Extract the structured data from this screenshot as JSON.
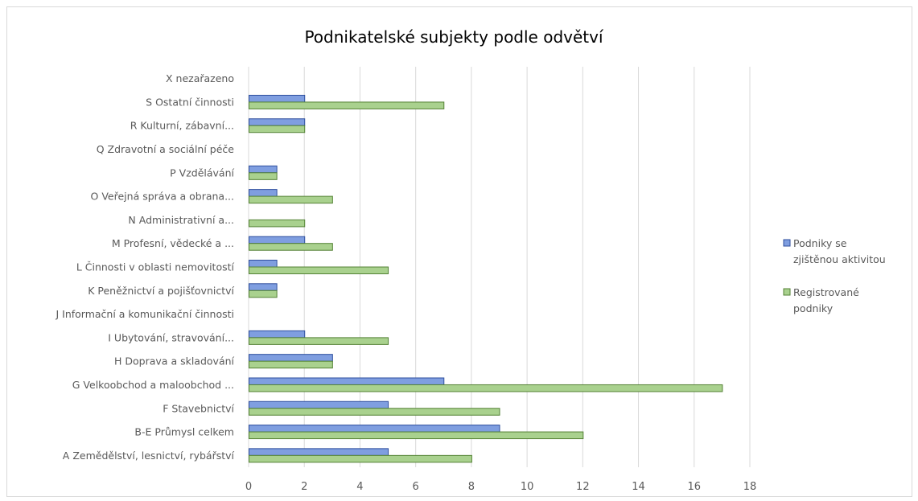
{
  "chart_data": {
    "type": "bar",
    "orientation": "horizontal",
    "title": "Podnikatelské subjekty podle odvětví",
    "xlabel": "",
    "ylabel": "",
    "xlim": [
      0,
      18
    ],
    "xticks": [
      0,
      2,
      4,
      6,
      8,
      10,
      12,
      14,
      16,
      18
    ],
    "grid": "vertical",
    "legend_position": "right",
    "categories": [
      "A Zemědělství, lesnictví, rybářství",
      "B-E Průmysl celkem",
      "F Stavebnictví",
      "G Velkoobchod a maloobchod ...",
      "H Doprava a skladování",
      "I Ubytování, stravování...",
      "J Informační a komunikační činnosti",
      "K Peněžnictví a pojišťovnictví",
      "L Činnosti v oblasti nemovitostí",
      "M Profesní, vědecké a ...",
      "N Administrativní a...",
      "O Veřejná správa a obrana...",
      "P Vzdělávání",
      "Q  Zdravotní a sociální péče",
      "R Kulturní, zábavní...",
      "S Ostatní činnosti",
      "X nezařazeno"
    ],
    "series": [
      {
        "name": "Podniky se zjištěnou aktivitou",
        "legend_lines": [
          "Podniky se",
          "zjištěnou aktivitou"
        ],
        "color": "#7f9ee0",
        "border": "#2f4f9e",
        "values": [
          5,
          9,
          5,
          7,
          3,
          2,
          0,
          1,
          1,
          2,
          0,
          1,
          1,
          0,
          2,
          2,
          0
        ]
      },
      {
        "name": "Registrované podniky",
        "legend_lines": [
          "Registrované",
          "podniky"
        ],
        "color": "#a9d18e",
        "border": "#548235",
        "values": [
          8,
          12,
          9,
          17,
          3,
          5,
          0,
          1,
          5,
          3,
          2,
          3,
          1,
          0,
          2,
          7,
          0
        ]
      }
    ]
  }
}
